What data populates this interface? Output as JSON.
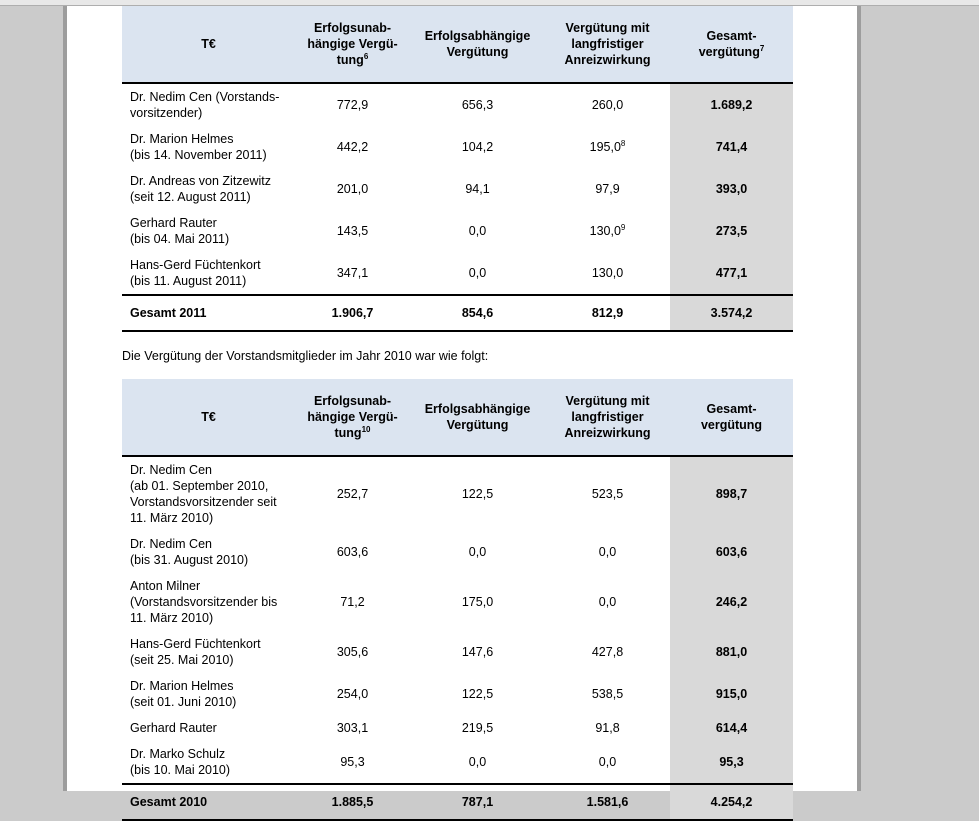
{
  "page": {
    "intro_2010": "Die Vergütung der Vorstandsmitglieder im Jahr 2010 war wie folgt:"
  },
  "colors": {
    "header_bg": "#dbe4f0",
    "total_column_bg": "#d9d9d9",
    "canvas_bg": "#cbcbcb",
    "page_bg": "#ffffff",
    "rule_color": "#000000"
  },
  "tables": [
    {
      "id": "compensation-2011",
      "unit_label": "T€",
      "columns": [
        {
          "lines": [
            "Erfolgsunab-",
            "hängige Vergü-",
            "tung"
          ],
          "sup": "6"
        },
        {
          "lines": [
            "Erfolgsabhängige",
            "Vergütung"
          ]
        },
        {
          "lines": [
            "Vergütung mit",
            "langfristiger",
            "Anreizwirkung"
          ]
        },
        {
          "lines": [
            "Gesamt-",
            "vergütung"
          ],
          "sup": "7"
        }
      ],
      "rows": [
        {
          "name_lines": [
            "Dr. Nedim Cen (Vorstands-",
            "vorsitzender)"
          ],
          "values": [
            {
              "v": "772,9"
            },
            {
              "v": "656,3"
            },
            {
              "v": "260,0"
            },
            {
              "v": "1.689,2"
            }
          ]
        },
        {
          "name_lines": [
            "Dr. Marion Helmes",
            "(bis 14. November 2011)"
          ],
          "values": [
            {
              "v": "442,2"
            },
            {
              "v": "104,2"
            },
            {
              "v": "195,0",
              "sup": "8"
            },
            {
              "v": "741,4"
            }
          ]
        },
        {
          "name_lines": [
            "Dr. Andreas von Zitzewitz",
            "(seit 12. August 2011)"
          ],
          "values": [
            {
              "v": "201,0"
            },
            {
              "v": "94,1"
            },
            {
              "v": "97,9"
            },
            {
              "v": "393,0"
            }
          ]
        },
        {
          "name_lines": [
            "Gerhard Rauter",
            "(bis 04. Mai 2011)"
          ],
          "values": [
            {
              "v": "143,5"
            },
            {
              "v": "0,0"
            },
            {
              "v": "130,0",
              "sup": "9"
            },
            {
              "v": "273,5"
            }
          ]
        },
        {
          "name_lines": [
            "Hans-Gerd Füchtenkort",
            "(bis 11. August 2011)"
          ],
          "values": [
            {
              "v": "347,1"
            },
            {
              "v": "0,0"
            },
            {
              "v": "130,0"
            },
            {
              "v": "477,1"
            }
          ]
        }
      ],
      "total": {
        "label": "Gesamt 2011",
        "values": [
          "1.906,7",
          "854,6",
          "812,9",
          "3.574,2"
        ]
      }
    },
    {
      "id": "compensation-2010",
      "unit_label": "T€",
      "columns": [
        {
          "lines": [
            "Erfolgsunab-",
            "hängige Vergü-",
            "tung"
          ],
          "sup": "10"
        },
        {
          "lines": [
            "Erfolgsabhängige",
            "Vergütung"
          ]
        },
        {
          "lines": [
            "Vergütung mit",
            "langfristiger",
            "Anreizwirkung"
          ]
        },
        {
          "lines": [
            "Gesamt-",
            "vergütung"
          ]
        }
      ],
      "rows": [
        {
          "name_lines": [
            "Dr. Nedim Cen",
            "(ab 01. September 2010,",
            "Vorstandsvorsitzender seit",
            "11. März 2010)"
          ],
          "values": [
            {
              "v": "252,7"
            },
            {
              "v": "122,5"
            },
            {
              "v": "523,5"
            },
            {
              "v": "898,7"
            }
          ]
        },
        {
          "name_lines": [
            "Dr. Nedim Cen",
            "(bis 31. August 2010)"
          ],
          "values": [
            {
              "v": "603,6"
            },
            {
              "v": "0,0"
            },
            {
              "v": "0,0"
            },
            {
              "v": "603,6"
            }
          ]
        },
        {
          "name_lines": [
            "Anton Milner",
            "(Vorstandsvorsitzender bis",
            "11. März 2010)"
          ],
          "values": [
            {
              "v": "71,2"
            },
            {
              "v": "175,0"
            },
            {
              "v": "0,0"
            },
            {
              "v": "246,2"
            }
          ]
        },
        {
          "name_lines": [
            "Hans-Gerd Füchtenkort",
            "(seit 25. Mai 2010)"
          ],
          "values": [
            {
              "v": "305,6"
            },
            {
              "v": "147,6"
            },
            {
              "v": "427,8"
            },
            {
              "v": "881,0"
            }
          ]
        },
        {
          "name_lines": [
            "Dr. Marion Helmes",
            "(seit 01. Juni 2010)"
          ],
          "values": [
            {
              "v": "254,0"
            },
            {
              "v": "122,5"
            },
            {
              "v": "538,5"
            },
            {
              "v": "915,0"
            }
          ]
        },
        {
          "name_lines": [
            "Gerhard Rauter"
          ],
          "values": [
            {
              "v": "303,1"
            },
            {
              "v": "219,5"
            },
            {
              "v": "91,8"
            },
            {
              "v": "614,4"
            }
          ]
        },
        {
          "name_lines": [
            "Dr. Marko Schulz",
            "(bis 10. Mai 2010)"
          ],
          "values": [
            {
              "v": "95,3"
            },
            {
              "v": "0,0"
            },
            {
              "v": "0,0"
            },
            {
              "v": "95,3"
            }
          ]
        }
      ],
      "total": {
        "label": "Gesamt 2010",
        "values": [
          "1.885,5",
          "787,1",
          "1.581,6",
          "4.254,2"
        ]
      }
    }
  ]
}
